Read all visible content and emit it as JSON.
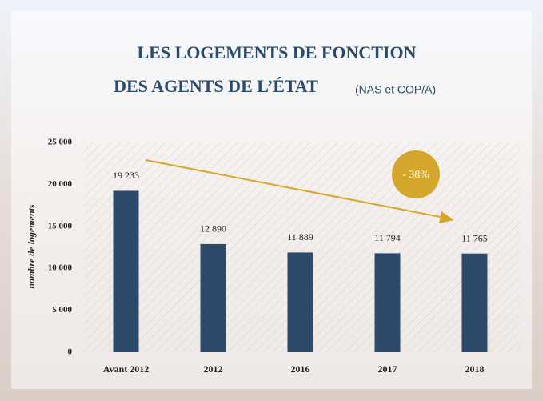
{
  "chart_data": {
    "type": "bar",
    "title": [
      "LES LOGEMENTS DE FONCTION",
      "DES AGENTS DE L’ÉTAT"
    ],
    "subtitle": "(NAS et COP/A)",
    "y_label": "nombre de logements",
    "annotation": "- 38%",
    "categories": [
      "Avant 2012",
      "2012",
      "2016",
      "2017",
      "2018"
    ],
    "values": [
      19233,
      12890,
      11889,
      11794,
      11765
    ],
    "value_labels": [
      "19 233",
      "12 890",
      "11 889",
      "11 794",
      "11 765"
    ],
    "color": "#2e4a6b",
    "ylim": [
      0,
      25000
    ],
    "yticks": [
      0,
      {
        "value": 5000,
        "label": "5 000"
      },
      {
        "value": 10000,
        "label": "10 000"
      },
      {
        "value": 15000,
        "label": "15 000"
      },
      {
        "value": 20000,
        "label": "20 000"
      },
      {
        "value": 25000,
        "label": "25 000"
      }
    ],
    "grid": false
  }
}
